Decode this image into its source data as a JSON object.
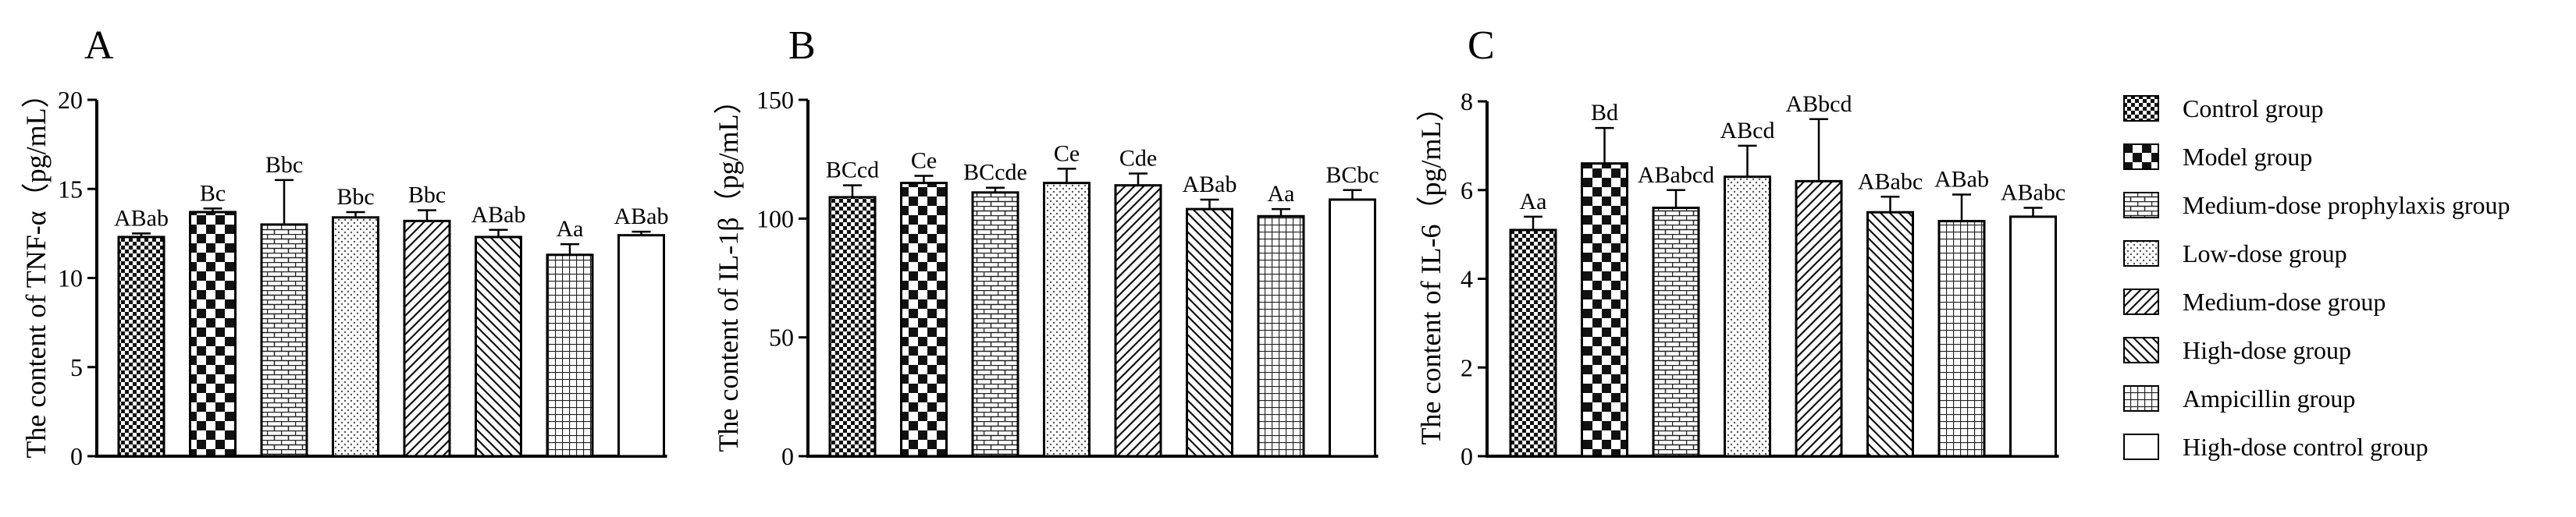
{
  "chart_data": [
    {
      "type": "bar",
      "panel_letter": "A",
      "ylabel": "The content of TNF-α（pg/mL）",
      "xlabel": "",
      "ylim": [
        0,
        20
      ],
      "yticks": [
        0,
        5,
        10,
        15,
        20
      ],
      "categories": [
        "Control group",
        "Model group",
        "Medium-dose prophylaxis group",
        "Low-dose group",
        "Medium-dose group",
        "High-dose group",
        "Ampicillin group",
        "High-dose control group"
      ],
      "values": [
        12.3,
        13.7,
        13.0,
        13.4,
        13.2,
        12.3,
        11.3,
        12.4
      ],
      "errors": [
        0.2,
        0.2,
        2.5,
        0.3,
        0.6,
        0.4,
        0.6,
        0.2
      ],
      "labels": [
        "ABab",
        "Bc",
        "Bbc",
        "Bbc",
        "Bbc",
        "ABab",
        "Aa",
        "ABab"
      ]
    },
    {
      "type": "bar",
      "panel_letter": "B",
      "ylabel": "The content of IL-1β（pg/mL）",
      "xlabel": "",
      "ylim": [
        0,
        150
      ],
      "yticks": [
        0,
        50,
        100,
        150
      ],
      "categories": [
        "Control group",
        "Model group",
        "Medium-dose prophylaxis group",
        "Low-dose group",
        "Medium-dose group",
        "High-dose group",
        "Ampicillin group",
        "High-dose control group"
      ],
      "values": [
        109,
        115,
        111,
        115,
        114,
        104,
        101,
        108
      ],
      "errors": [
        5,
        3,
        2,
        6,
        5,
        4,
        3,
        4
      ],
      "labels": [
        "BCcd",
        "Ce",
        "BCcde",
        "Ce",
        "Cde",
        "ABab",
        "Aa",
        "BCbc"
      ]
    },
    {
      "type": "bar",
      "panel_letter": "C",
      "ylabel": "The content of IL-6（pg/mL）",
      "xlabel": "",
      "ylim": [
        0,
        8
      ],
      "yticks": [
        0,
        2,
        4,
        6,
        8
      ],
      "categories": [
        "Control group",
        "Model group",
        "Medium-dose prophylaxis group",
        "Low-dose group",
        "Medium-dose group",
        "High-dose group",
        "Ampicillin group",
        "High-dose control group"
      ],
      "values": [
        5.1,
        6.6,
        5.6,
        6.3,
        6.2,
        5.5,
        5.3,
        5.4
      ],
      "errors": [
        0.3,
        0.8,
        0.4,
        0.7,
        1.4,
        0.35,
        0.6,
        0.2
      ],
      "labels": [
        "Aa",
        "Bd",
        "ABabcd",
        "ABcd",
        "ABbcd",
        "ABabc",
        "ABab",
        "ABabc"
      ]
    }
  ],
  "legend": {
    "items": [
      {
        "label": "Control group",
        "pattern": "checker"
      },
      {
        "label": "Model group",
        "pattern": "bigchecker"
      },
      {
        "label": "Medium-dose prophylaxis group",
        "pattern": "brick"
      },
      {
        "label": "Low-dose group",
        "pattern": "dots"
      },
      {
        "label": "Medium-dose group",
        "pattern": "diagfwd"
      },
      {
        "label": "High-dose group",
        "pattern": "diagback"
      },
      {
        "label": "Ampicillin group",
        "pattern": "grid"
      },
      {
        "label": "High-dose control group",
        "pattern": "blank"
      }
    ]
  }
}
